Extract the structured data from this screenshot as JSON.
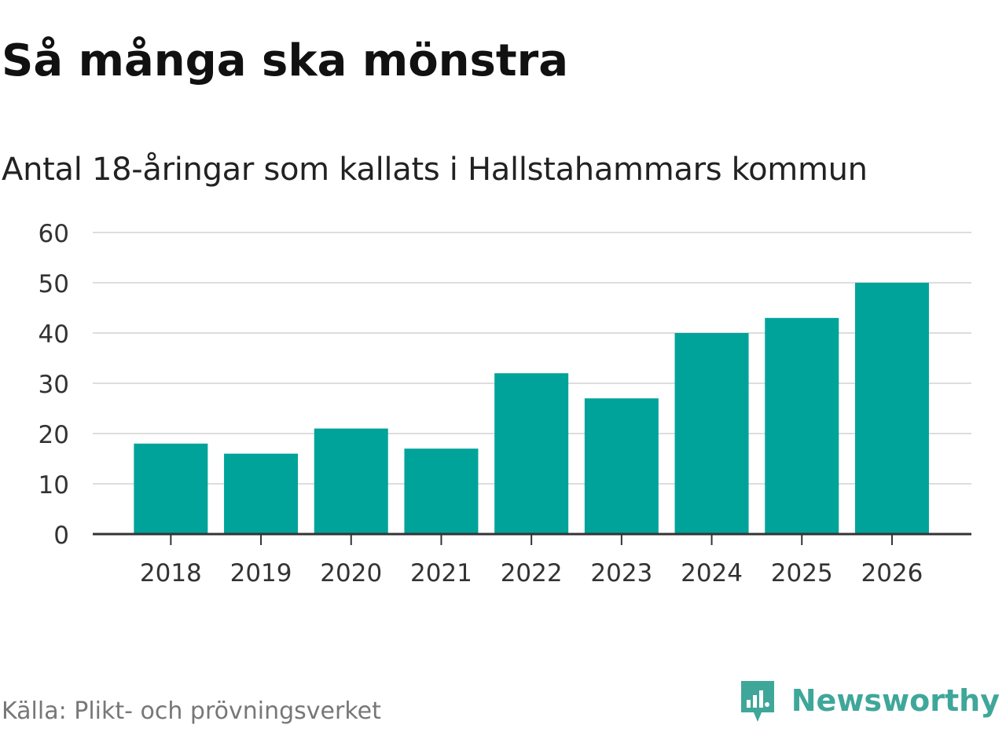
{
  "header": {
    "title": "Så många ska mönstra",
    "subtitle": "Antal 18-åringar som kallats i Hallstahammars kommun"
  },
  "footer": {
    "source_prefix": "Källa:",
    "source_name": "Plikt- och prövningsverket",
    "brand_name": "Newsworthy",
    "brand_icon": "newsworthy-logo-icon"
  },
  "colors": {
    "bar": "#00a39a",
    "grid": "#dddddd",
    "axis": "#333333",
    "tick_text": "#333333",
    "brand": "#3fa79a"
  },
  "chart_data": {
    "type": "bar",
    "title": "Så många ska mönstra",
    "subtitle": "Antal 18-åringar som kallats i Hallstahammars kommun",
    "xlabel": "",
    "ylabel": "",
    "categories": [
      "2018",
      "2019",
      "2020",
      "2021",
      "2022",
      "2023",
      "2024",
      "2025",
      "2026"
    ],
    "values": [
      18,
      16,
      21,
      17,
      32,
      27,
      40,
      43,
      50
    ],
    "ylim": [
      0,
      60
    ],
    "yticks": [
      0,
      10,
      20,
      30,
      40,
      50,
      60
    ],
    "grid": true,
    "legend": "none"
  }
}
